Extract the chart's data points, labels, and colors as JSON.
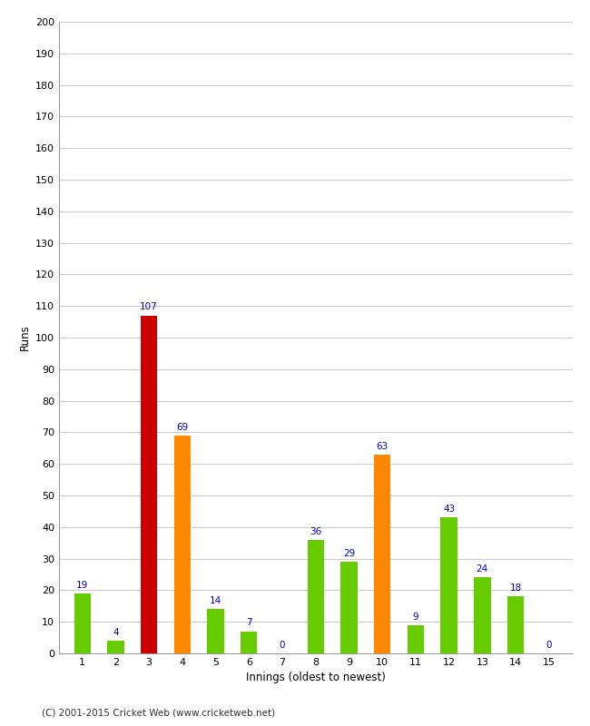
{
  "title": "",
  "xlabel": "Innings (oldest to newest)",
  "ylabel": "Runs",
  "categories": [
    "1",
    "2",
    "3",
    "4",
    "5",
    "6",
    "7",
    "8",
    "9",
    "10",
    "11",
    "12",
    "13",
    "14",
    "15"
  ],
  "values": [
    19,
    4,
    107,
    69,
    14,
    7,
    0,
    36,
    29,
    63,
    9,
    43,
    24,
    18,
    0
  ],
  "bar_colors": [
    "#66cc00",
    "#66cc00",
    "#cc0000",
    "#ff8800",
    "#66cc00",
    "#66cc00",
    "#66cc00",
    "#66cc00",
    "#66cc00",
    "#ff8800",
    "#66cc00",
    "#66cc00",
    "#66cc00",
    "#66cc00",
    "#66cc00"
  ],
  "ylim": [
    0,
    200
  ],
  "yticks": [
    0,
    10,
    20,
    30,
    40,
    50,
    60,
    70,
    80,
    90,
    100,
    110,
    120,
    130,
    140,
    150,
    160,
    170,
    180,
    190,
    200
  ],
  "label_color": "#0000cc",
  "label_fontsize": 7.5,
  "axis_label_fontsize": 8.5,
  "tick_fontsize": 8,
  "footer": "(C) 2001-2015 Cricket Web (www.cricketweb.net)",
  "background_color": "#ffffff",
  "grid_color": "#cccccc",
  "bar_width": 0.5
}
